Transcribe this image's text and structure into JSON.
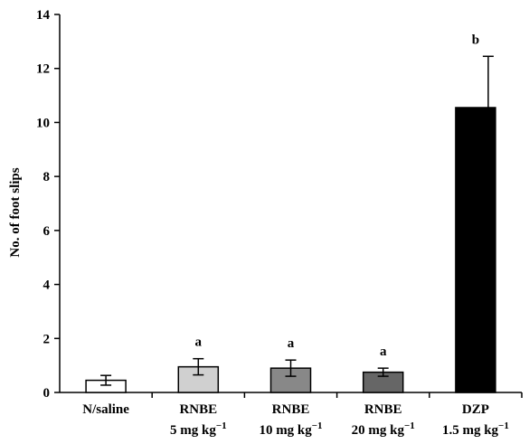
{
  "chart_data": {
    "type": "bar",
    "ylabel": "No. of foot slips",
    "xlabel": "",
    "ylim": [
      0,
      14
    ],
    "yticks": [
      0,
      2,
      4,
      6,
      8,
      10,
      12,
      14
    ],
    "grid": false,
    "categories": [
      {
        "line1": "N/saline",
        "line2": "",
        "unit_exp": ""
      },
      {
        "line1": "RNBE",
        "line2": "5 mg kg",
        "unit_exp": "−1"
      },
      {
        "line1": "RNBE",
        "line2": "10 mg kg",
        "unit_exp": "−1"
      },
      {
        "line1": "RNBE",
        "line2": "20 mg kg",
        "unit_exp": "−1"
      },
      {
        "line1": "DZP",
        "line2": "1.5 mg kg",
        "unit_exp": "−1"
      }
    ],
    "values": [
      0.45,
      0.95,
      0.9,
      0.75,
      10.55
    ],
    "errors": [
      0.18,
      0.3,
      0.3,
      0.15,
      1.9
    ],
    "significance": [
      "",
      "a",
      "a",
      "a",
      "b"
    ],
    "colors": {
      "fills": [
        "#ffffff",
        "#d0d0d0",
        "#888888",
        "#666666",
        "#000000"
      ],
      "stroke": "#000000"
    }
  }
}
